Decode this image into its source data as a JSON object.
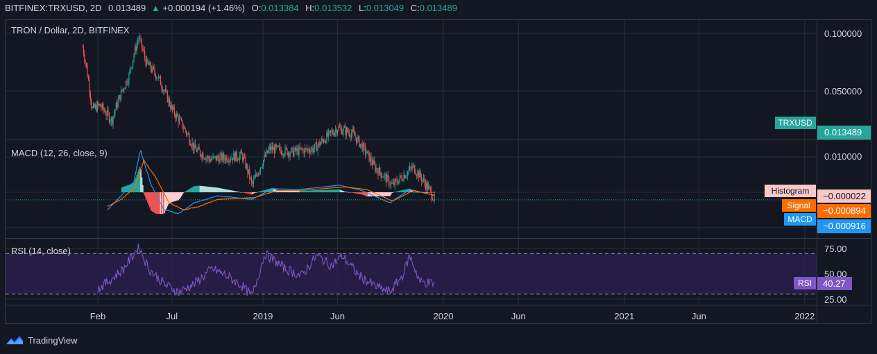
{
  "header": {
    "symbol": "BITFINEX:TRXUSD, 2D",
    "last": "0.013489",
    "change": "+0.000194 (+1.46%)",
    "o_label": "O:",
    "o_value": "0.013384",
    "h_label": "H:",
    "h_value": "0.013532",
    "l_label": "L:",
    "l_value": "0.013049",
    "c_label": "C:",
    "c_value": "0.013489"
  },
  "footer": {
    "brand": "TradingView",
    "logo_icon": "tradingview-logo-icon"
  },
  "colors": {
    "background": "#131722",
    "grid": "#2a2e39",
    "up": "#26a69a",
    "down": "#ef5350",
    "macd": "#2196f3",
    "signal": "#ff6d00",
    "rsi": "#7e57c2",
    "rsi_band": "#2a1f4d"
  },
  "chart_data": [
    {
      "type": "candlestick",
      "title": "TRON / Dollar, 2D, BITFINEX",
      "series_name": "TRXUSD",
      "last_value": "0.013489",
      "y_ticks": [
        "0.100000",
        "0.050000"
      ],
      "x_ticks": [
        "Feb",
        "Jul",
        "2019",
        "Jun",
        "2020",
        "Jun",
        "2021",
        "Jun",
        "2022"
      ],
      "x_range": [
        "2018-01",
        "2022-01"
      ],
      "scale": "log",
      "close_path": [
        [
          "2018-01-01",
          0.085
        ],
        [
          "2018-01-20",
          0.04
        ],
        [
          "2018-02-05",
          0.042
        ],
        [
          "2018-03-01",
          0.035
        ],
        [
          "2018-04-05",
          0.06
        ],
        [
          "2018-04-25",
          0.095
        ],
        [
          "2018-05-10",
          0.07
        ],
        [
          "2018-06-01",
          0.06
        ],
        [
          "2018-07-01",
          0.04
        ],
        [
          "2018-08-15",
          0.025
        ],
        [
          "2018-09-15",
          0.022
        ],
        [
          "2018-11-20",
          0.023
        ],
        [
          "2018-12-10",
          0.016
        ],
        [
          "2019-01-15",
          0.025
        ],
        [
          "2019-03-01",
          0.024
        ],
        [
          "2019-04-15",
          0.025
        ],
        [
          "2019-06-01",
          0.032
        ],
        [
          "2019-07-01",
          0.03
        ],
        [
          "2019-08-15",
          0.02
        ],
        [
          "2019-09-20",
          0.016
        ],
        [
          "2019-11-01",
          0.02
        ],
        [
          "2019-12-05",
          0.015
        ],
        [
          "2019-12-15",
          0.013489
        ]
      ]
    },
    {
      "type": "line",
      "title": "MACD (12, 26, close, 9)",
      "y_ticks": [
        "0.010000"
      ],
      "labels": {
        "histogram": "Histogram",
        "signal": "Signal",
        "macd": "MACD"
      },
      "last_values": {
        "histogram": "−0.000022",
        "signal": "−0.000894",
        "macd": "−0.000916"
      },
      "macd_path": [
        [
          "2018-02-20",
          -0.005
        ],
        [
          "2018-03-20",
          -0.001
        ],
        [
          "2018-04-15",
          0.003
        ],
        [
          "2018-04-28",
          0.012
        ],
        [
          "2018-05-20",
          0.002
        ],
        [
          "2018-06-15",
          -0.005
        ],
        [
          "2018-07-15",
          -0.006
        ],
        [
          "2018-08-15",
          -0.003
        ],
        [
          "2018-10-01",
          -0.001
        ],
        [
          "2018-12-10",
          -0.002
        ],
        [
          "2019-01-20",
          0.001
        ],
        [
          "2019-03-15",
          0.0008
        ],
        [
          "2019-06-05",
          0.002
        ],
        [
          "2019-07-20",
          0.0005
        ],
        [
          "2019-09-15",
          -0.003
        ],
        [
          "2019-10-25",
          0.0008
        ],
        [
          "2019-12-15",
          -0.000916
        ]
      ],
      "signal_path": [
        [
          "2018-02-20",
          -0.004
        ],
        [
          "2018-03-20",
          -0.002
        ],
        [
          "2018-04-15",
          0.001
        ],
        [
          "2018-05-05",
          0.009
        ],
        [
          "2018-05-30",
          0.004
        ],
        [
          "2018-06-25",
          -0.003
        ],
        [
          "2018-07-25",
          -0.005
        ],
        [
          "2018-08-25",
          -0.004
        ],
        [
          "2018-10-01",
          -0.002
        ],
        [
          "2018-12-15",
          -0.0015
        ],
        [
          "2019-01-30",
          0.0005
        ],
        [
          "2019-03-15",
          0.0005
        ],
        [
          "2019-06-15",
          0.0015
        ],
        [
          "2019-07-30",
          0.0008
        ],
        [
          "2019-09-20",
          -0.0025
        ],
        [
          "2019-11-01",
          0.0005
        ],
        [
          "2019-12-15",
          -0.000894
        ]
      ]
    },
    {
      "type": "line",
      "title": "RSI (14, close)",
      "series_name": "RSI",
      "last_value": "40.27",
      "y_ticks": [
        "75.00",
        "50.00",
        "25.00"
      ],
      "bands": [
        70,
        30
      ],
      "path": [
        [
          "2018-02-01",
          35
        ],
        [
          "2018-03-01",
          45
        ],
        [
          "2018-03-25",
          55
        ],
        [
          "2018-04-25",
          77
        ],
        [
          "2018-05-15",
          55
        ],
        [
          "2018-06-15",
          40
        ],
        [
          "2018-07-15",
          32
        ],
        [
          "2018-08-15",
          40
        ],
        [
          "2018-09-20",
          55
        ],
        [
          "2018-10-20",
          48
        ],
        [
          "2018-11-20",
          38
        ],
        [
          "2018-12-10",
          28
        ],
        [
          "2019-01-05",
          70
        ],
        [
          "2019-02-15",
          55
        ],
        [
          "2019-03-20",
          48
        ],
        [
          "2019-04-20",
          68
        ],
        [
          "2019-05-20",
          58
        ],
        [
          "2019-06-10",
          68
        ],
        [
          "2019-07-15",
          48
        ],
        [
          "2019-08-15",
          38
        ],
        [
          "2019-09-15",
          32
        ],
        [
          "2019-10-10",
          48
        ],
        [
          "2019-10-25",
          68
        ],
        [
          "2019-11-15",
          42
        ],
        [
          "2019-12-15",
          40.27
        ]
      ]
    }
  ]
}
